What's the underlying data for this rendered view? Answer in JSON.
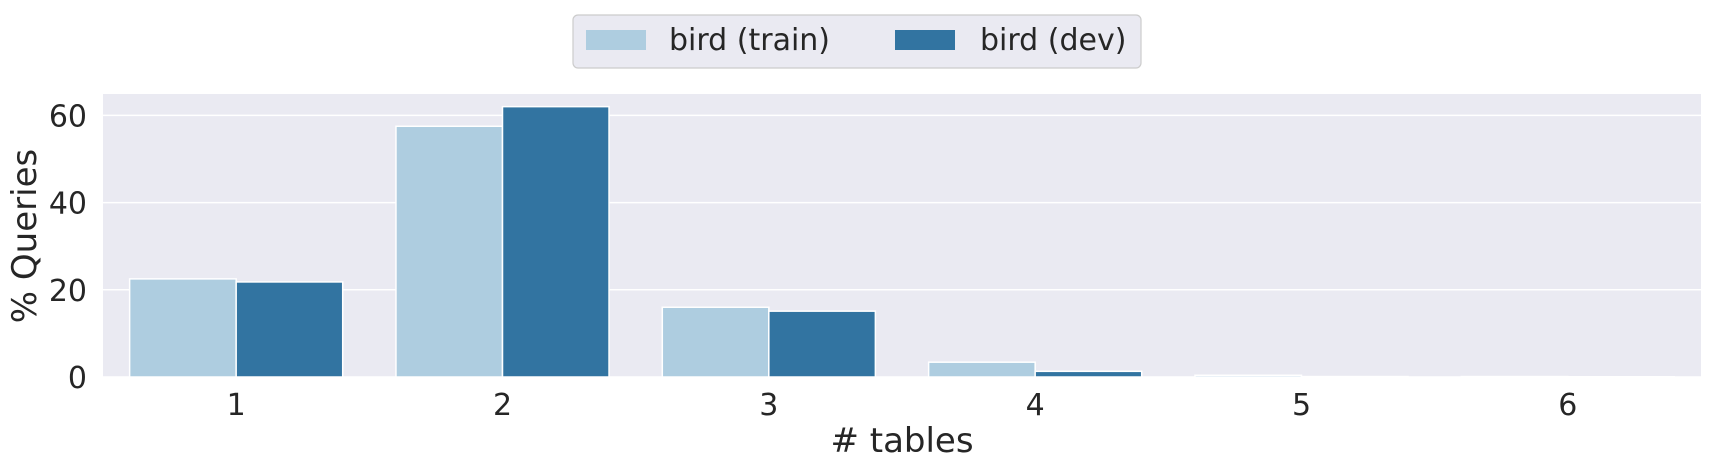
{
  "chart_data": {
    "type": "bar",
    "categories": [
      "1",
      "2",
      "3",
      "4",
      "5",
      "6"
    ],
    "series": [
      {
        "name": "bird (train)",
        "color": "#aecde0",
        "values": [
          22.5,
          57.5,
          16.0,
          3.4,
          0.4,
          0.1
        ]
      },
      {
        "name": "bird (dev)",
        "color": "#3274a1",
        "values": [
          21.8,
          62.0,
          15.1,
          1.3,
          0.1,
          0.05
        ]
      }
    ],
    "xlabel": "# tables",
    "ylabel": "% Queries",
    "ylim": [
      0,
      64.9
    ],
    "yticks": [
      "0",
      "20",
      "40",
      "60"
    ],
    "grid": true,
    "legend_position": "top-center",
    "background_color": "#eaeaf2",
    "grid_color": "#ffffff"
  }
}
